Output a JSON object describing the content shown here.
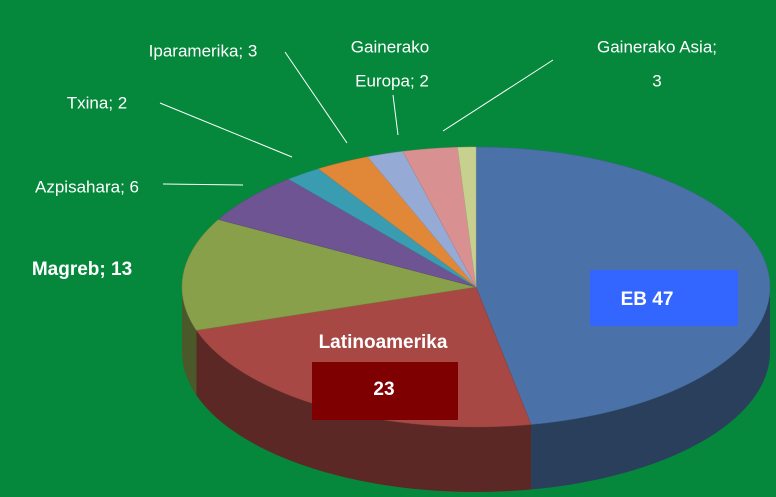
{
  "chart_data": {
    "type": "pie3d",
    "values": [
      47,
      23,
      13,
      6,
      2,
      3,
      2,
      3,
      1
    ],
    "value_labels": [
      [
        "EB 47"
      ],
      [
        "Latinoamerika",
        "23"
      ],
      [
        "Magreb; 13"
      ],
      [
        "Azpisahara; 6"
      ],
      [
        "Txina; 2"
      ],
      [
        "Iparamerika; 3"
      ],
      [
        "Gainerako",
        "Europa; 2"
      ],
      [
        "Gainerako Asia;",
        "3"
      ],
      null
    ],
    "colors": [
      "#4a72a8",
      "#a84845",
      "#88a04a",
      "#6e5493",
      "#3a9cb0",
      "#e08838",
      "#96aad6",
      "#d89090",
      "#c8d090"
    ],
    "start_angle": 0,
    "direction": "clockwise"
  }
}
